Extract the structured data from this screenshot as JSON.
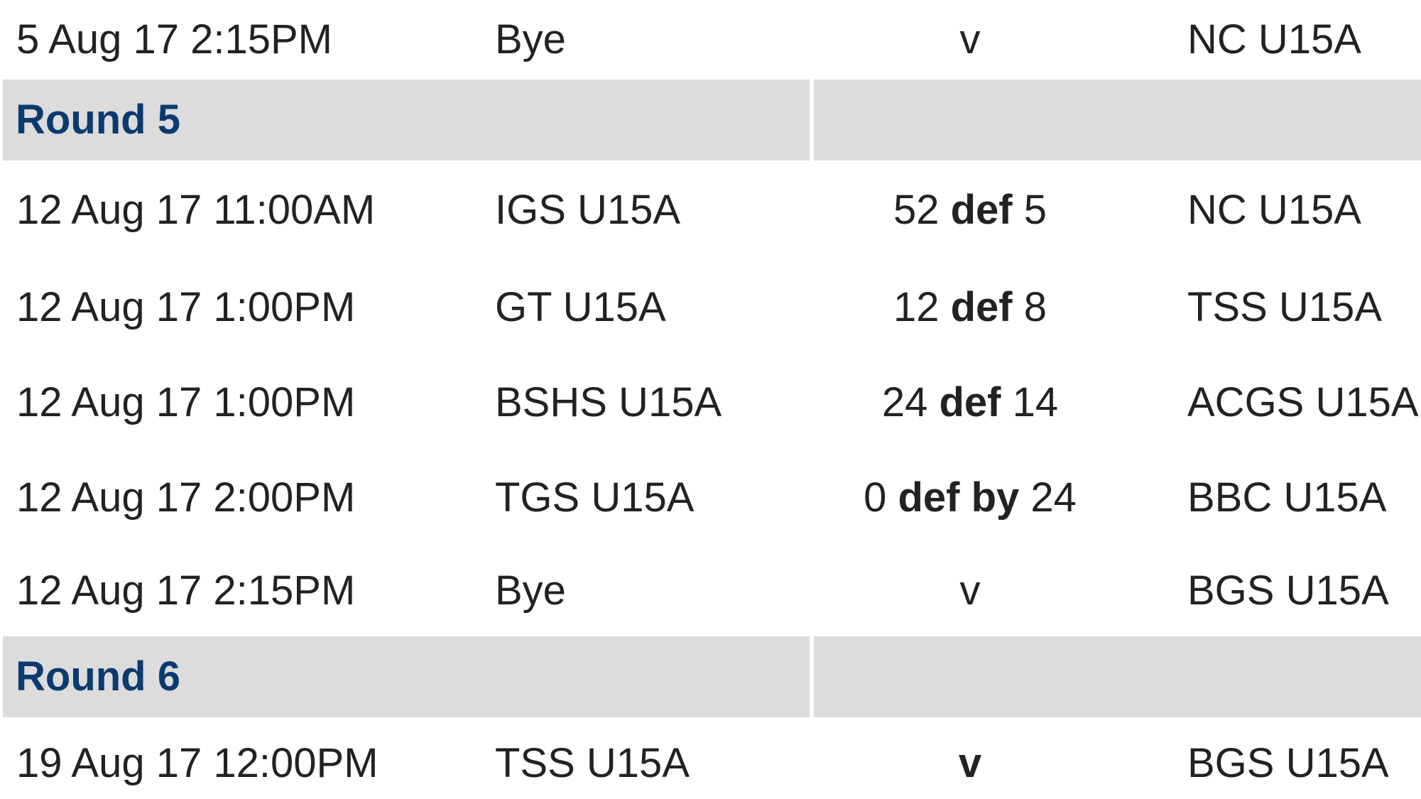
{
  "rows": [
    {
      "kind": "match",
      "date": "5 Aug 17 2:15PM",
      "home": "Bye",
      "score_home": "",
      "result_word": "v",
      "score_away": "",
      "away": "NC U15A"
    },
    {
      "kind": "round",
      "title": "Round 5"
    },
    {
      "kind": "match",
      "date": "12 Aug 17 11:00AM",
      "home": "IGS U15A",
      "score_home": "52",
      "result_word": "def",
      "score_away": "5",
      "away": "NC U15A"
    },
    {
      "kind": "match",
      "date": "12 Aug 17 1:00PM",
      "home": "GT U15A",
      "score_home": "12",
      "result_word": "def",
      "score_away": "8",
      "away": "TSS U15A"
    },
    {
      "kind": "match",
      "date": "12 Aug 17 1:00PM",
      "home": "BSHS U15A",
      "score_home": "24",
      "result_word": "def",
      "score_away": "14",
      "away": "ACGS U15A"
    },
    {
      "kind": "match",
      "date": "12 Aug 17 2:00PM",
      "home": "TGS U15A",
      "score_home": "0",
      "result_word": "def by",
      "score_away": "24",
      "away": "BBC U15A"
    },
    {
      "kind": "match",
      "date": "12 Aug 17 2:15PM",
      "home": "Bye",
      "score_home": "",
      "result_word": "v",
      "score_away": "",
      "away": "BGS U15A"
    },
    {
      "kind": "round",
      "title": "Round 6"
    },
    {
      "kind": "match",
      "date": "19 Aug 17 12:00PM",
      "home": "TSS U15A",
      "score_home": "",
      "result_word": "v",
      "score_away": "",
      "away": "BGS U15A",
      "result_bold": true
    }
  ],
  "colors": {
    "round_band": "#dcdcdc",
    "round_title": "#0b3b6e",
    "text": "#222222"
  }
}
